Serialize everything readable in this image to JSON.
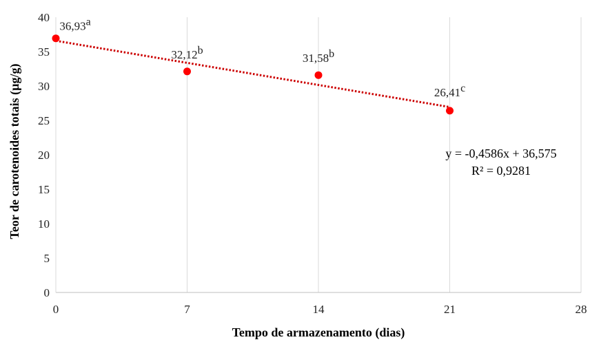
{
  "chart_data": {
    "type": "scatter",
    "title": "",
    "xlabel": "Tempo de armazenamento (dias)",
    "ylabel": "Teor de carotenoides totais (µg/g)",
    "xlim": [
      0,
      28
    ],
    "ylim": [
      0,
      40
    ],
    "x_ticks": [
      "0",
      "7",
      "14",
      "21",
      "28"
    ],
    "y_ticks": [
      "0",
      "5",
      "10",
      "15",
      "20",
      "25",
      "30",
      "35",
      "40"
    ],
    "x_gridlines": true,
    "y_gridlines": false,
    "marker_color": "#ff0000",
    "trend_color": "#cc0000",
    "points": [
      {
        "x": 0,
        "y": 36.93,
        "label": "36,93",
        "sup": "a"
      },
      {
        "x": 7,
        "y": 32.12,
        "label": "32,12",
        "sup": "b"
      },
      {
        "x": 14,
        "y": 31.58,
        "label": "31,58",
        "sup": "b"
      },
      {
        "x": 21,
        "y": 26.41,
        "label": "26,41",
        "sup": "c"
      }
    ],
    "trendline": {
      "type": "linear",
      "slope": -0.4586,
      "intercept": 36.575,
      "x_range": [
        0,
        21
      ],
      "equation": "y = -0,4586x + 36,575",
      "r_squared": "R² = 0,9281"
    }
  }
}
